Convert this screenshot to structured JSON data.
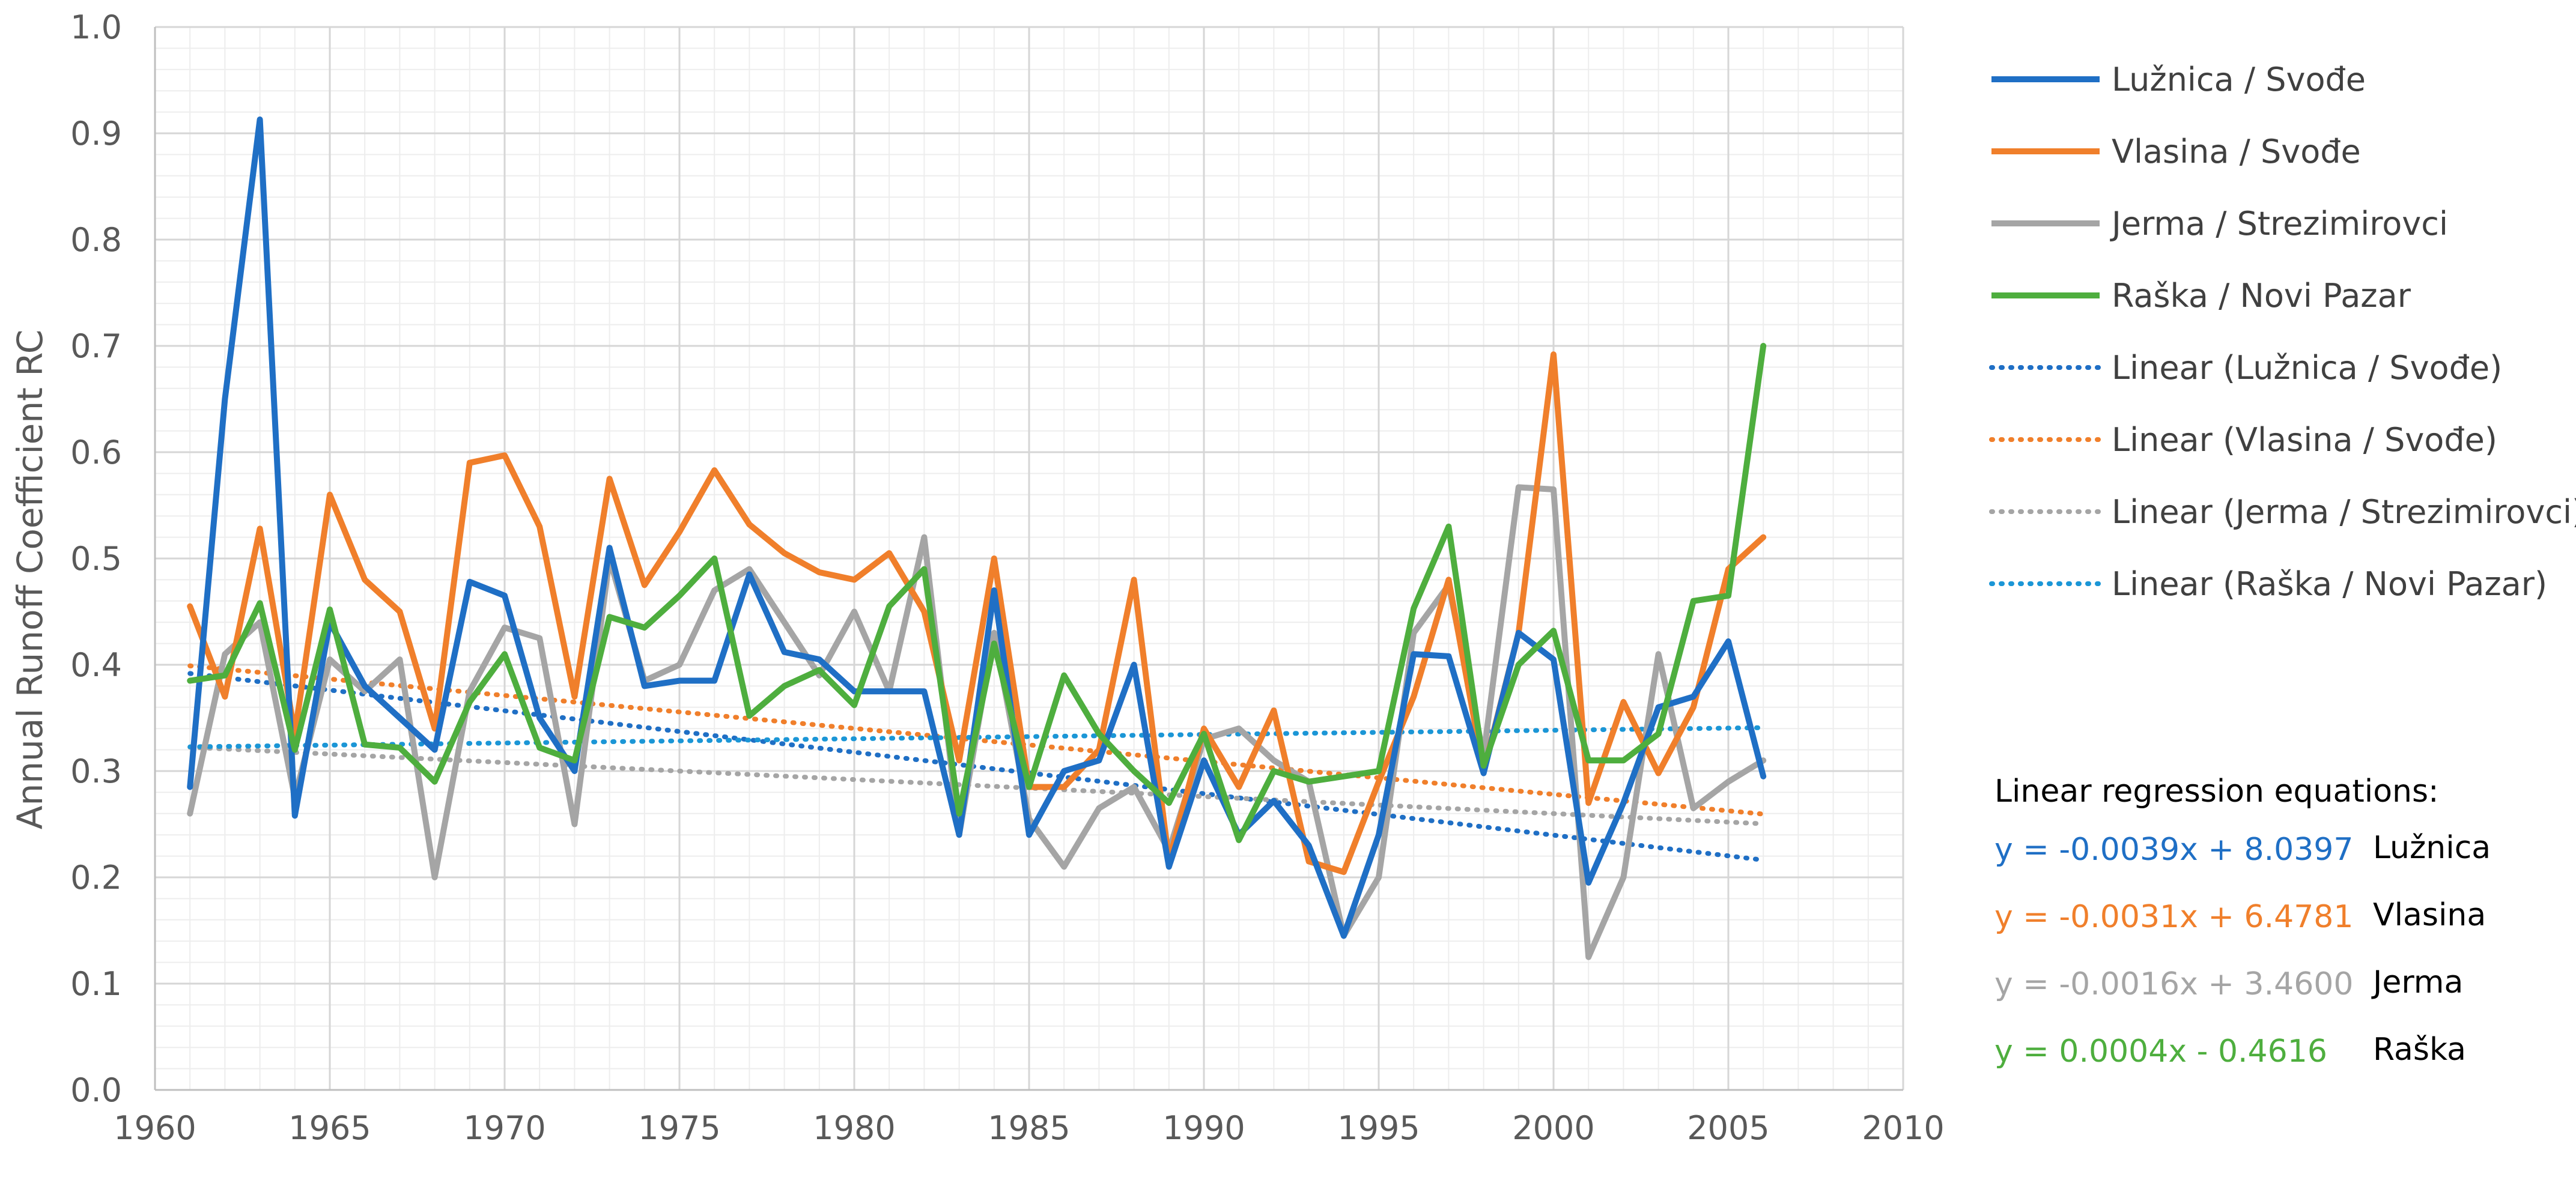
{
  "chart_data": {
    "type": "line",
    "ylabel": "Annual Runoff Coefficient RC",
    "xlabel": "",
    "xlim": [
      1960,
      2010
    ],
    "ylim": [
      0,
      1
    ],
    "x_ticks": [
      1960,
      1965,
      1970,
      1975,
      1980,
      1985,
      1990,
      1995,
      2000,
      2005,
      2010
    ],
    "x_tick_labels": [
      "1960",
      "1965",
      "1970",
      "1975",
      "1980",
      "1985",
      "1990",
      "1995",
      "2000",
      "2005",
      "2010"
    ],
    "y_ticks": [
      0,
      0.1,
      0.2,
      0.3,
      0.4,
      0.5,
      0.6,
      0.7,
      0.8,
      0.9,
      1.0
    ],
    "y_tick_labels": [
      "0.0",
      "0.1",
      "0.2",
      "0.3",
      "0.4",
      "0.5",
      "0.6",
      "0.7",
      "0.8",
      "0.9",
      "1.0"
    ],
    "grid": true,
    "legend_position": "right",
    "x": [
      1961,
      1962,
      1963,
      1964,
      1965,
      1966,
      1967,
      1968,
      1969,
      1970,
      1971,
      1972,
      1973,
      1974,
      1975,
      1976,
      1977,
      1978,
      1979,
      1980,
      1981,
      1982,
      1983,
      1984,
      1985,
      1986,
      1987,
      1988,
      1989,
      1990,
      1991,
      1992,
      1993,
      1994,
      1995,
      1996,
      1997,
      1998,
      1999,
      2000,
      2001,
      2002,
      2003,
      2004,
      2005,
      2006
    ],
    "series": [
      {
        "name": "Lužnica / Svođe",
        "color": "#1F6FC5",
        "values": [
          0.285,
          0.65,
          0.913,
          0.258,
          0.44,
          0.38,
          0.35,
          0.32,
          0.478,
          0.465,
          0.35,
          0.3,
          0.51,
          0.38,
          0.385,
          0.385,
          0.485,
          0.412,
          0.405,
          0.375,
          0.375,
          0.375,
          0.24,
          0.47,
          0.24,
          0.3,
          0.31,
          0.4,
          0.21,
          0.31,
          0.24,
          0.272,
          0.23,
          0.145,
          0.24,
          0.41,
          0.408,
          0.298,
          0.43,
          0.405,
          0.195,
          0.27,
          0.36,
          0.37,
          0.422,
          0.295
        ]
      },
      {
        "name": "Vlasina / Svođe",
        "color": "#F07F2B",
        "values": [
          0.455,
          0.37,
          0.528,
          0.335,
          0.56,
          0.48,
          0.45,
          0.34,
          0.59,
          0.597,
          0.53,
          0.37,
          0.575,
          0.475,
          0.525,
          0.583,
          0.532,
          0.505,
          0.487,
          0.48,
          0.505,
          0.45,
          0.31,
          0.5,
          0.285,
          0.285,
          0.32,
          0.48,
          0.215,
          0.34,
          0.285,
          0.357,
          0.215,
          0.205,
          0.29,
          0.37,
          0.48,
          0.3,
          0.43,
          0.692,
          0.27,
          0.365,
          0.298,
          0.36,
          0.49,
          0.52
        ]
      },
      {
        "name": "Jerma / Strezimirovci",
        "color": "#A5A5A5",
        "values": [
          0.26,
          0.41,
          0.44,
          0.275,
          0.405,
          0.375,
          0.405,
          0.2,
          0.375,
          0.435,
          0.425,
          0.25,
          0.5,
          0.385,
          0.4,
          0.47,
          0.49,
          0.44,
          0.39,
          0.45,
          0.375,
          0.52,
          0.24,
          0.43,
          0.255,
          0.21,
          0.265,
          0.285,
          0.225,
          0.33,
          0.34,
          0.31,
          0.29,
          0.145,
          0.2,
          0.43,
          0.475,
          0.315,
          0.567,
          0.565,
          0.125,
          0.2,
          0.41,
          0.265,
          0.29,
          0.31
        ]
      },
      {
        "name": "Raška / Novi Pazar",
        "color": "#4EAE3E",
        "values": [
          0.385,
          0.39,
          0.458,
          0.32,
          0.452,
          0.325,
          0.322,
          0.29,
          0.365,
          0.41,
          0.322,
          0.31,
          0.445,
          0.435,
          0.465,
          0.5,
          0.352,
          0.38,
          0.395,
          0.362,
          0.455,
          0.49,
          0.26,
          0.42,
          0.285,
          0.39,
          0.335,
          0.3,
          0.27,
          0.335,
          0.235,
          0.3,
          0.29,
          0.295,
          0.3,
          0.453,
          0.53,
          0.305,
          0.4,
          0.432,
          0.31,
          0.31,
          0.335,
          0.46,
          0.465,
          0.7
        ]
      }
    ],
    "trendlines": [
      {
        "name": "Linear (Lužnica / Svođe)",
        "color": "#1F6FC5",
        "slope": -0.0039,
        "intercept": 8.0397
      },
      {
        "name": "Linear (Vlasina / Svođe)",
        "color": "#F07F2B",
        "slope": -0.0031,
        "intercept": 6.4781
      },
      {
        "name": "Linear (Jerma / Strezimirovci)",
        "color": "#A5A5A5",
        "slope": -0.0016,
        "intercept": 3.46
      },
      {
        "name": "Linear (Raška / Novi Pazar)",
        "color": "#1B96D6",
        "slope": 0.0004,
        "intercept": -0.4616
      }
    ],
    "equations_title": "Linear regression equations:",
    "equations": [
      {
        "text": "y = -0.0039x + 8.0397",
        "name": "Lužnica",
        "color": "#1F6FC5"
      },
      {
        "text": "y = -0.0031x + 6.4781",
        "name": "Vlasina",
        "color": "#F07F2B"
      },
      {
        "text": "y = -0.0016x + 3.4600",
        "name": "Jerma",
        "color": "#A5A5A5"
      },
      {
        "text": "y = 0.0004x - 0.4616",
        "name": "Raška",
        "color": "#4EAE3E"
      }
    ]
  }
}
